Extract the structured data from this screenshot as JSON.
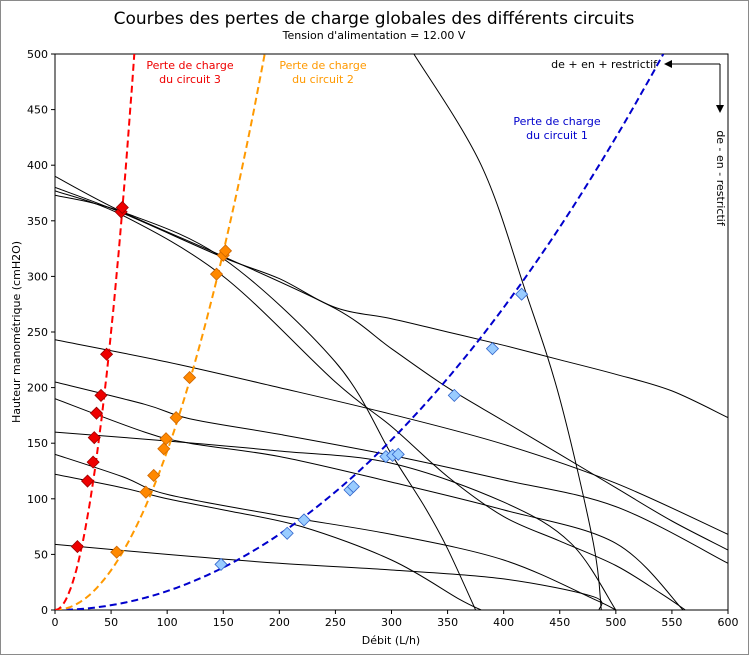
{
  "chart_data": {
    "type": "line",
    "title": "Courbes des pertes de charge globales des différents circuits",
    "subtitle": "Tension d'alimentation = 12.00 V",
    "xlabel": "Débit (L/h)",
    "ylabel": "Hauteur manométrique (cmH2O)",
    "xlim": [
      0,
      600
    ],
    "ylim": [
      0,
      500
    ],
    "x_ticks": [
      "0",
      "50",
      "100",
      "150",
      "200",
      "250",
      "300",
      "350",
      "400",
      "450",
      "500",
      "550",
      "600"
    ],
    "y_ticks": [
      "0",
      "50",
      "100",
      "150",
      "200",
      "250",
      "300",
      "350",
      "400",
      "450",
      "500"
    ],
    "grid": false,
    "annotations": {
      "restrictive_up": "de + en + restrictif",
      "restrictive_down": "de - en - restrictif",
      "circuit1_line1": "Perte de charge",
      "circuit1_line2": "du circuit 1",
      "circuit2_line1": "Perte de charge",
      "circuit2_line2": "du circuit 2",
      "circuit3_line1": "Perte de charge",
      "circuit3_line2": "du circuit 3"
    },
    "colors": {
      "circuit1": "#0000cc",
      "circuit2": "#ff9900",
      "circuit3": "#ff0000",
      "circuit1_marker": "#99ccff",
      "circuit2_marker": "#ff8800",
      "circuit3_marker": "#ee0000",
      "pump_curve": "#000000"
    },
    "system_curves": [
      {
        "circuit": 1,
        "k": 0.0017
      },
      {
        "circuit": 2,
        "k": 0.0143
      },
      {
        "circuit": 3,
        "k": 0.1
      }
    ],
    "pump_curves": [
      [
        [
          0,
          390
        ],
        [
          60,
          358
        ],
        [
          150,
          318
        ],
        [
          250,
          271
        ],
        [
          300,
          235
        ],
        [
          350,
          200
        ],
        [
          400,
          170
        ],
        [
          450,
          140
        ],
        [
          500,
          110
        ],
        [
          550,
          80
        ],
        [
          600,
          54
        ]
      ],
      [
        [
          0,
          380
        ],
        [
          60,
          357
        ],
        [
          150,
          317
        ],
        [
          200,
          298
        ],
        [
          250,
          272
        ],
        [
          300,
          262
        ],
        [
          350,
          250
        ],
        [
          400,
          238
        ],
        [
          450,
          225
        ],
        [
          500,
          212
        ],
        [
          550,
          197
        ],
        [
          600,
          173
        ]
      ],
      [
        [
          0,
          377
        ],
        [
          60,
          355
        ],
        [
          150,
          300
        ],
        [
          250,
          205
        ],
        [
          300,
          165
        ],
        [
          350,
          120
        ],
        [
          400,
          84
        ],
        [
          450,
          62
        ],
        [
          500,
          40
        ],
        [
          540,
          15
        ],
        [
          562,
          0
        ]
      ],
      [
        [
          0,
          373
        ],
        [
          60,
          358
        ],
        [
          150,
          316
        ],
        [
          250,
          223
        ],
        [
          300,
          140
        ],
        [
          330,
          92
        ],
        [
          350,
          55
        ],
        [
          375,
          0
        ]
      ],
      [
        [
          320,
          500
        ],
        [
          380,
          400
        ],
        [
          420,
          285
        ],
        [
          450,
          190
        ],
        [
          480,
          60
        ],
        [
          487,
          0
        ]
      ],
      [
        [
          0,
          243
        ],
        [
          100,
          223
        ],
        [
          200,
          200
        ],
        [
          300,
          176
        ],
        [
          400,
          149
        ],
        [
          500,
          114
        ],
        [
          600,
          68
        ]
      ],
      [
        [
          0,
          205
        ],
        [
          80,
          185
        ],
        [
          120,
          172
        ],
        [
          200,
          158
        ],
        [
          300,
          139
        ],
        [
          400,
          117
        ],
        [
          500,
          93
        ],
        [
          600,
          42
        ]
      ],
      [
        [
          0,
          190
        ],
        [
          80,
          160
        ],
        [
          120,
          150
        ],
        [
          200,
          138
        ],
        [
          300,
          115
        ],
        [
          400,
          90
        ],
        [
          500,
          60
        ],
        [
          560,
          0
        ]
      ],
      [
        [
          0,
          160
        ],
        [
          100,
          152
        ],
        [
          200,
          143
        ],
        [
          300,
          132
        ],
        [
          400,
          97
        ],
        [
          460,
          60
        ],
        [
          500,
          0
        ]
      ],
      [
        [
          0,
          140
        ],
        [
          60,
          120
        ],
        [
          100,
          104
        ],
        [
          200,
          85
        ],
        [
          300,
          68
        ],
        [
          400,
          45
        ],
        [
          480,
          10
        ],
        [
          500,
          0
        ]
      ],
      [
        [
          0,
          122
        ],
        [
          60,
          110
        ],
        [
          100,
          100
        ],
        [
          150,
          90
        ],
        [
          220,
          75
        ],
        [
          300,
          45
        ],
        [
          360,
          10
        ],
        [
          380,
          0
        ]
      ],
      [
        [
          0,
          59
        ],
        [
          100,
          50
        ],
        [
          200,
          42
        ],
        [
          300,
          36
        ],
        [
          400,
          28
        ],
        [
          480,
          12
        ],
        [
          485,
          0
        ]
      ]
    ],
    "markers": [
      {
        "circuit": 1,
        "points": [
          [
            148,
            41
          ],
          [
            207,
            69
          ],
          [
            222,
            81
          ],
          [
            263,
            108
          ],
          [
            266,
            111
          ],
          [
            295,
            138
          ],
          [
            301,
            139
          ],
          [
            306,
            140
          ],
          [
            356,
            193
          ],
          [
            390,
            235
          ],
          [
            416,
            284
          ]
        ]
      },
      {
        "circuit": 2,
        "points": [
          [
            55,
            52
          ],
          [
            81,
            106
          ],
          [
            88,
            121
          ],
          [
            97,
            145
          ],
          [
            99,
            154
          ],
          [
            108,
            173
          ],
          [
            120,
            209
          ],
          [
            144,
            302
          ],
          [
            150,
            319
          ],
          [
            152,
            323
          ]
        ]
      },
      {
        "circuit": 3,
        "points": [
          [
            20,
            57
          ],
          [
            29,
            116
          ],
          [
            34,
            133
          ],
          [
            35,
            155
          ],
          [
            37,
            177
          ],
          [
            41,
            193
          ],
          [
            46,
            230
          ],
          [
            59,
            358
          ],
          [
            60,
            362
          ]
        ]
      }
    ]
  }
}
